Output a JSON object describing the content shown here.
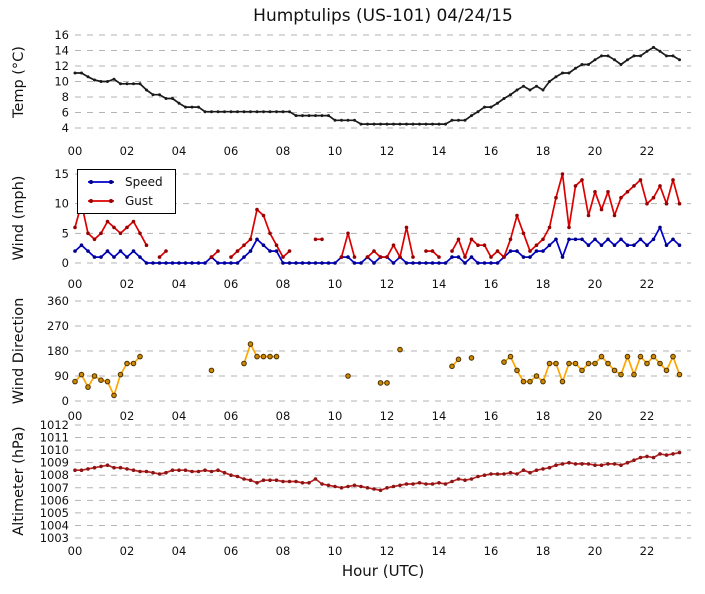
{
  "chart_data": {
    "type": "line",
    "title": "Humptulips (US-101) 04/24/15",
    "xlabel": "Hour (UTC)",
    "grid": "horizontal-dashed",
    "grid_color": "#b3b3b3",
    "x_range": [
      0,
      23.7
    ],
    "x_ticks": [
      0,
      2,
      4,
      6,
      8,
      10,
      12,
      14,
      16,
      18,
      20,
      22
    ],
    "x_tick_labels": [
      "00",
      "02",
      "04",
      "06",
      "08",
      "10",
      "12",
      "14",
      "16",
      "18",
      "20",
      "22"
    ],
    "x_hours": [
      0,
      0.25,
      0.5,
      0.75,
      1,
      1.25,
      1.5,
      1.75,
      2,
      2.25,
      2.5,
      2.75,
      3,
      3.25,
      3.5,
      3.75,
      4,
      4.25,
      4.5,
      4.75,
      5,
      5.25,
      5.5,
      5.75,
      6,
      6.25,
      6.5,
      6.75,
      7,
      7.25,
      7.5,
      7.75,
      8,
      8.25,
      8.5,
      8.75,
      9,
      9.25,
      9.5,
      9.75,
      10,
      10.25,
      10.5,
      10.75,
      11,
      11.25,
      11.5,
      11.75,
      12,
      12.25,
      12.5,
      12.75,
      13,
      13.25,
      13.5,
      13.75,
      14,
      14.25,
      14.5,
      14.75,
      15,
      15.25,
      15.5,
      15.75,
      16,
      16.25,
      16.5,
      16.75,
      17,
      17.25,
      17.5,
      17.75,
      18,
      18.25,
      18.5,
      18.75,
      19,
      19.25,
      19.5,
      19.75,
      20,
      20.25,
      20.5,
      20.75,
      21,
      21.25,
      21.5,
      21.75,
      22,
      22.25,
      22.5,
      22.75,
      23,
      23.25
    ],
    "subplots": [
      {
        "ylabel": "Temp (°C)",
        "yticks": [
          4,
          6,
          8,
          10,
          12,
          14,
          16
        ],
        "ylim": [
          2.8,
          16.9
        ],
        "series": [
          {
            "name": "Temp",
            "line_color": "#1a1a1a",
            "marker_color": "#1a1a1a",
            "values": [
              11.1,
              11.1,
              10.6,
              10.2,
              10,
              10,
              10.3,
              9.7,
              9.7,
              9.7,
              9.7,
              8.9,
              8.3,
              8.3,
              7.8,
              7.8,
              7.2,
              6.7,
              6.7,
              6.7,
              6.1,
              6.1,
              6.1,
              6.1,
              6.1,
              6.1,
              6.1,
              6.1,
              6.1,
              6.1,
              6.1,
              6.1,
              6.1,
              6.1,
              5.6,
              5.6,
              5.6,
              5.6,
              5.6,
              5.6,
              5,
              5,
              5,
              5,
              4.5,
              4.5,
              4.5,
              4.5,
              4.5,
              4.5,
              4.5,
              4.5,
              4.5,
              4.5,
              4.5,
              4.5,
              4.5,
              4.5,
              5,
              5,
              5,
              5.6,
              6.1,
              6.7,
              6.7,
              7.2,
              7.8,
              8.3,
              8.9,
              9.4,
              8.9,
              9.4,
              8.9,
              10,
              10.6,
              11.1,
              11.1,
              11.7,
              12.2,
              12.2,
              12.8,
              13.3,
              13.3,
              12.8,
              12.2,
              12.8,
              13.3,
              13.3,
              13.9,
              14.4,
              13.9,
              13.3,
              13.3,
              12.8
            ]
          }
        ]
      },
      {
        "ylabel": "Wind (mph)",
        "yticks": [
          0,
          5,
          10,
          15
        ],
        "ylim": [
          -1.2,
          16.2
        ],
        "legend": {
          "position": "upper-left",
          "entries": [
            {
              "label": "Speed"
            },
            {
              "label": "Gust"
            }
          ]
        },
        "series": [
          {
            "name": "Speed",
            "line_color": "#0000cc",
            "marker_color": "#00008b",
            "values": [
              2,
              3,
              2,
              1,
              1,
              2,
              1,
              2,
              1,
              2,
              1,
              0,
              0,
              0,
              0,
              0,
              0,
              0,
              0,
              0,
              0,
              1,
              0,
              0,
              0,
              0,
              1,
              2,
              4,
              3,
              2,
              2,
              0,
              0,
              0,
              0,
              0,
              0,
              0,
              0,
              0,
              1,
              1,
              0,
              0,
              1,
              0,
              1,
              1,
              0,
              1,
              0,
              0,
              0,
              0,
              0,
              0,
              0,
              1,
              1,
              0,
              1,
              0,
              0,
              0,
              0,
              1,
              2,
              2,
              1,
              1,
              2,
              2,
              3,
              4,
              1,
              4,
              4,
              4,
              3,
              4,
              3,
              4,
              3,
              4,
              3,
              3,
              4,
              3,
              4,
              6,
              3,
              4,
              3
            ]
          },
          {
            "name": "Gust",
            "line_color": "#dd0000",
            "marker_color": "#990000",
            "values": [
              6,
              10,
              5,
              4,
              5,
              7,
              6,
              5,
              6,
              7,
              5,
              3,
              null,
              1,
              2,
              null,
              null,
              null,
              null,
              null,
              null,
              1,
              2,
              null,
              1,
              2,
              3,
              4,
              9,
              8,
              5,
              3,
              1,
              2,
              null,
              null,
              null,
              4,
              4,
              null,
              null,
              1,
              5,
              1,
              null,
              1,
              2,
              1,
              1,
              3,
              1,
              6,
              1,
              null,
              2,
              2,
              1,
              null,
              2,
              4,
              1,
              4,
              3,
              3,
              1,
              2,
              1,
              4,
              8,
              5,
              2,
              3,
              4,
              6,
              11,
              15,
              6,
              13,
              14,
              8,
              12,
              9,
              12,
              8,
              11,
              12,
              13,
              14,
              10,
              11,
              13,
              10,
              14,
              10
            ]
          }
        ]
      },
      {
        "ylabel": "Wind Direction",
        "yticks": [
          0,
          90,
          180,
          270,
          360
        ],
        "ylim": [
          -25,
          385
        ],
        "series": [
          {
            "name": "Direction",
            "line_color": "#ffa500",
            "marker_color": "#cc8800",
            "marker_edge": "#4a3000",
            "values": [
              70,
              95,
              50,
              90,
              75,
              70,
              20,
              95,
              135,
              135,
              160,
              null,
              null,
              null,
              null,
              null,
              null,
              null,
              null,
              null,
              null,
              110,
              null,
              null,
              null,
              null,
              135,
              205,
              160,
              160,
              160,
              160,
              null,
              null,
              null,
              null,
              null,
              null,
              null,
              null,
              null,
              null,
              90,
              null,
              null,
              null,
              null,
              65,
              65,
              null,
              185,
              null,
              null,
              null,
              null,
              null,
              null,
              null,
              125,
              150,
              null,
              155,
              null,
              null,
              null,
              null,
              140,
              160,
              110,
              70,
              70,
              90,
              70,
              135,
              135,
              70,
              135,
              135,
              110,
              135,
              135,
              160,
              135,
              110,
              95,
              160,
              95,
              160,
              135,
              160,
              135,
              110,
              160,
              95
            ]
          }
        ]
      },
      {
        "ylabel": "Altimeter (hPa)",
        "yticks": [
          1003,
          1004,
          1005,
          1006,
          1007,
          1008,
          1009,
          1010,
          1011,
          1012
        ],
        "ylim": [
          1002.5,
          1012.5
        ],
        "series": [
          {
            "name": "Altimeter",
            "line_color": "#bb2222",
            "marker_color": "#8b1515",
            "values": [
              1008.4,
              1008.4,
              1008.5,
              1008.6,
              1008.7,
              1008.8,
              1008.6,
              1008.6,
              1008.5,
              1008.4,
              1008.3,
              1008.3,
              1008.2,
              1008.1,
              1008.2,
              1008.4,
              1008.4,
              1008.4,
              1008.3,
              1008.3,
              1008.4,
              1008.3,
              1008.4,
              1008.2,
              1008.0,
              1007.9,
              1007.7,
              1007.6,
              1007.4,
              1007.6,
              1007.6,
              1007.6,
              1007.5,
              1007.5,
              1007.5,
              1007.4,
              1007.4,
              1007.7,
              1007.3,
              1007.2,
              1007.1,
              1007.0,
              1007.1,
              1007.2,
              1007.1,
              1007.0,
              1006.9,
              1006.8,
              1007.0,
              1007.1,
              1007.2,
              1007.3,
              1007.3,
              1007.4,
              1007.3,
              1007.3,
              1007.4,
              1007.3,
              1007.5,
              1007.7,
              1007.6,
              1007.7,
              1007.9,
              1008.0,
              1008.1,
              1008.1,
              1008.1,
              1008.2,
              1008.1,
              1008.4,
              1008.2,
              1008.4,
              1008.5,
              1008.6,
              1008.8,
              1008.9,
              1009.0,
              1008.9,
              1008.9,
              1008.9,
              1008.8,
              1008.8,
              1008.9,
              1008.9,
              1008.8,
              1009.0,
              1009.2,
              1009.4,
              1009.5,
              1009.4,
              1009.7,
              1009.6,
              1009.7,
              1009.8
            ]
          }
        ]
      }
    ]
  }
}
